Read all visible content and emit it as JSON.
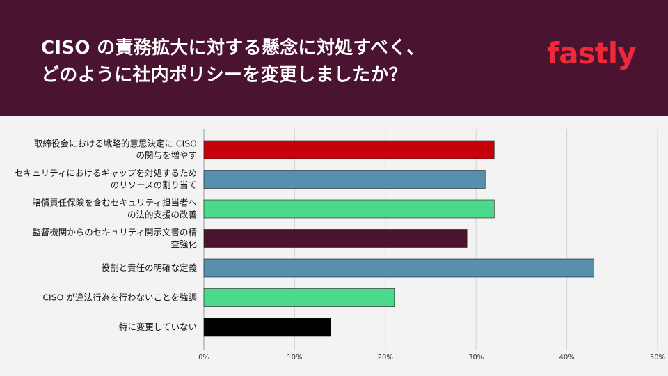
{
  "header": {
    "title_line1": "CISO の責務拡大に対する懸念に対処すべく、",
    "title_line2": "どのように社内ポリシーを変更しましたか？",
    "logo_text": "fastly",
    "background_color": "#4a1330",
    "logo_color": "#f0283c"
  },
  "chart_data": {
    "type": "bar",
    "orientation": "horizontal",
    "categories": [
      [
        "取締役会における戦略的意思決定に CISO",
        "の関与を増やす"
      ],
      [
        "セキュリティにおけるギャップを対処するため",
        "のリソースの割り当て"
      ],
      [
        "賠償責任保険を含むセキュリティ担当者へ",
        "の法的支援の改善"
      ],
      [
        "監督機関からのセキュリティ開示文書の精",
        "査強化"
      ],
      [
        "役割と責任の明確な定義"
      ],
      [
        "CISO が違法行為を行わないことを強調"
      ],
      [
        "特に変更していない"
      ]
    ],
    "values": [
      32,
      31,
      32,
      29,
      43,
      21,
      14
    ],
    "colors": [
      "#c8000b",
      "#5790af",
      "#4cd98b",
      "#4a1330",
      "#5790af",
      "#4cd98b",
      "#000000"
    ],
    "xlim": [
      0,
      50
    ],
    "ticks": [
      "0%",
      "10%",
      "20%",
      "30%",
      "40%",
      "50%"
    ],
    "grid": true,
    "title": "",
    "xlabel": "",
    "ylabel": ""
  }
}
